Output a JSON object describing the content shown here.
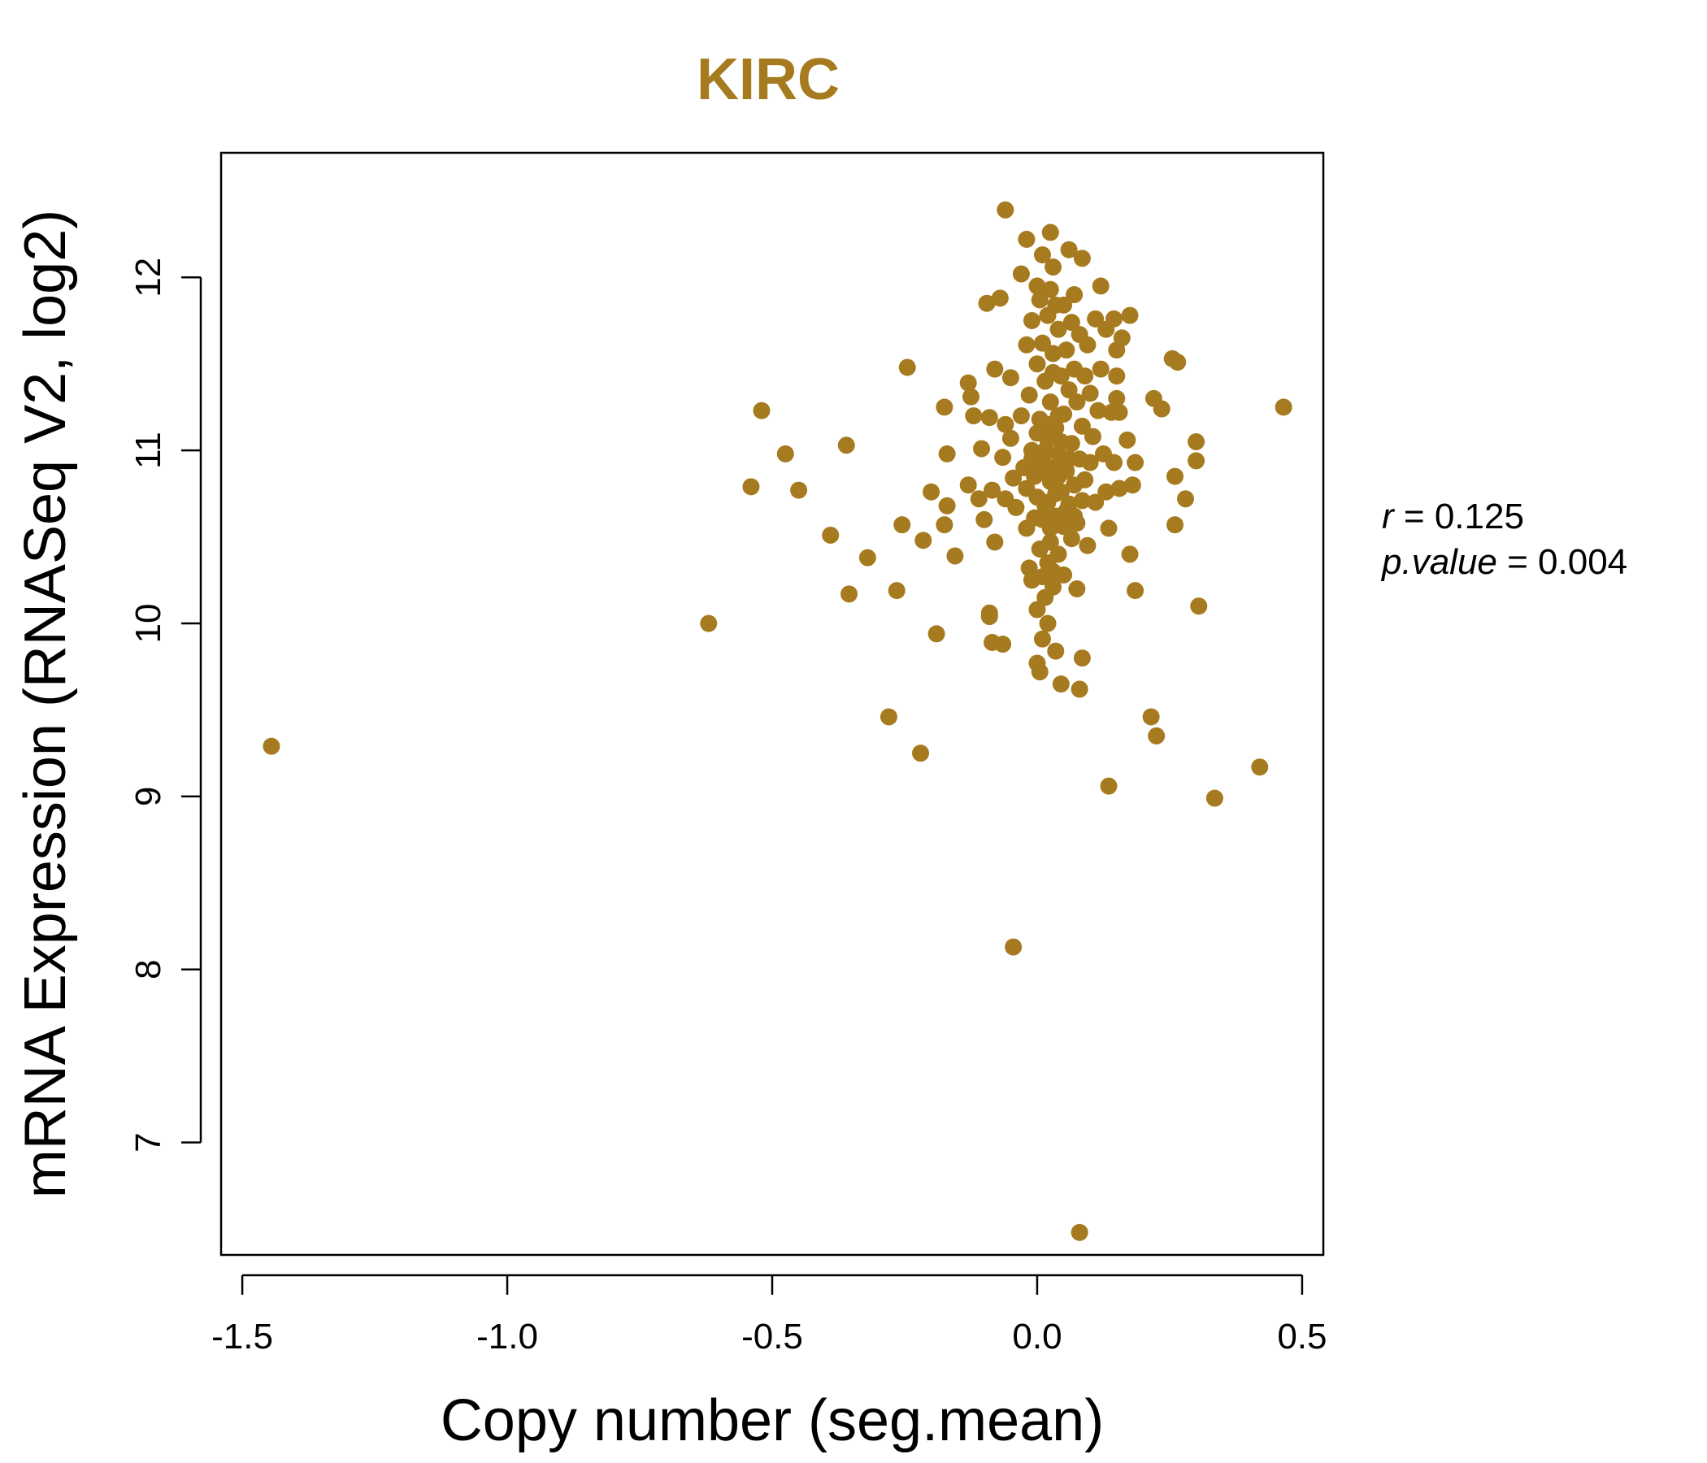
{
  "chart_data": {
    "type": "scatter",
    "title": "KIRC",
    "xlabel": "Copy number (seg.mean)",
    "ylabel": "mRNA Expression (RNASeq V2, log2)",
    "xlim": [
      -1.54,
      0.54
    ],
    "ylim": [
      6.35,
      12.72
    ],
    "x_ticks": [
      -1.5,
      -1.0,
      -0.5,
      0.0,
      0.5
    ],
    "x_tick_labels": [
      "-1.5",
      "-1.0",
      "-0.5",
      "0.0",
      "0.5"
    ],
    "y_ticks": [
      7,
      8,
      9,
      10,
      11,
      12
    ],
    "y_tick_labels": [
      "7",
      "8",
      "9",
      "10",
      "11",
      "12"
    ],
    "grid": false,
    "point_color": "#A67A1E",
    "stats": {
      "r_symbol": "r",
      "r_value": "0.125",
      "p_symbol": "p.value",
      "p_value": "0.004"
    },
    "points": [
      [
        -1.445,
        9.29
      ],
      [
        -0.62,
        10.0
      ],
      [
        -0.52,
        11.23
      ],
      [
        -0.54,
        10.79
      ],
      [
        -0.475,
        10.98
      ],
      [
        -0.45,
        10.77
      ],
      [
        -0.39,
        10.51
      ],
      [
        -0.36,
        11.03
      ],
      [
        -0.355,
        10.17
      ],
      [
        -0.32,
        10.38
      ],
      [
        -0.28,
        9.46
      ],
      [
        -0.265,
        10.19
      ],
      [
        -0.245,
        11.48
      ],
      [
        -0.255,
        10.57
      ],
      [
        -0.22,
        9.25
      ],
      [
        -0.215,
        10.48
      ],
      [
        -0.2,
        10.76
      ],
      [
        -0.19,
        9.94
      ],
      [
        -0.175,
        11.25
      ],
      [
        -0.17,
        10.98
      ],
      [
        -0.175,
        10.57
      ],
      [
        -0.17,
        10.68
      ],
      [
        -0.155,
        10.39
      ],
      [
        -0.13,
        11.39
      ],
      [
        -0.125,
        11.31
      ],
      [
        -0.13,
        10.8
      ],
      [
        -0.12,
        11.2
      ],
      [
        -0.11,
        10.72
      ],
      [
        -0.105,
        11.01
      ],
      [
        -0.1,
        10.6
      ],
      [
        -0.095,
        11.85
      ],
      [
        -0.09,
        11.19
      ],
      [
        -0.085,
        10.77
      ],
      [
        -0.09,
        10.06
      ],
      [
        -0.09,
        10.04
      ],
      [
        -0.085,
        9.89
      ],
      [
        -0.08,
        11.47
      ],
      [
        -0.08,
        10.47
      ],
      [
        -0.07,
        11.88
      ],
      [
        -0.065,
        9.88
      ],
      [
        -0.065,
        10.96
      ],
      [
        -0.06,
        11.15
      ],
      [
        -0.06,
        10.72
      ],
      [
        -0.06,
        12.39
      ],
      [
        -0.05,
        11.42
      ],
      [
        -0.05,
        11.07
      ],
      [
        -0.045,
        10.84
      ],
      [
        -0.045,
        8.13
      ],
      [
        -0.04,
        10.67
      ],
      [
        -0.03,
        12.02
      ],
      [
        -0.03,
        11.2
      ],
      [
        -0.025,
        10.9
      ],
      [
        -0.02,
        12.22
      ],
      [
        -0.02,
        11.61
      ],
      [
        -0.02,
        10.55
      ],
      [
        -0.015,
        11.32
      ],
      [
        -0.015,
        10.32
      ],
      [
        -0.01,
        11.75
      ],
      [
        -0.01,
        11.0
      ],
      [
        -0.01,
        10.25
      ],
      [
        -0.005,
        10.61
      ],
      [
        0.0,
        11.95
      ],
      [
        0.0,
        11.5
      ],
      [
        0.0,
        10.73
      ],
      [
        0.0,
        10.08
      ],
      [
        0.0,
        9.77
      ],
      [
        0.005,
        11.87
      ],
      [
        0.005,
        11.18
      ],
      [
        0.005,
        10.43
      ],
      [
        0.005,
        9.72
      ],
      [
        0.01,
        12.13
      ],
      [
        0.01,
        11.62
      ],
      [
        0.01,
        10.95
      ],
      [
        0.01,
        10.27
      ],
      [
        0.01,
        9.91
      ],
      [
        0.015,
        11.4
      ],
      [
        0.015,
        10.68
      ],
      [
        0.015,
        10.15
      ],
      [
        0.02,
        11.78
      ],
      [
        0.02,
        11.06
      ],
      [
        0.02,
        10.35
      ],
      [
        0.02,
        10.0
      ],
      [
        0.025,
        12.26
      ],
      [
        0.025,
        11.93
      ],
      [
        0.025,
        11.28
      ],
      [
        0.025,
        10.82
      ],
      [
        0.025,
        10.47
      ],
      [
        0.03,
        12.06
      ],
      [
        0.03,
        11.56
      ],
      [
        0.03,
        10.9
      ],
      [
        0.03,
        10.21
      ],
      [
        0.035,
        11.84
      ],
      [
        0.035,
        11.13
      ],
      [
        0.035,
        10.62
      ],
      [
        0.035,
        9.84
      ],
      [
        0.04,
        11.7
      ],
      [
        0.04,
        10.98
      ],
      [
        0.04,
        10.4
      ],
      [
        0.045,
        11.43
      ],
      [
        0.045,
        10.76
      ],
      [
        0.045,
        9.65
      ],
      [
        0.05,
        11.84
      ],
      [
        0.05,
        11.21
      ],
      [
        0.05,
        10.56
      ],
      [
        0.05,
        10.28
      ],
      [
        0.055,
        11.58
      ],
      [
        0.055,
        10.88
      ],
      [
        0.06,
        12.16
      ],
      [
        0.06,
        11.35
      ],
      [
        0.06,
        10.69
      ],
      [
        0.065,
        11.74
      ],
      [
        0.065,
        11.04
      ],
      [
        0.065,
        10.49
      ],
      [
        0.07,
        11.9
      ],
      [
        0.07,
        11.47
      ],
      [
        0.07,
        10.8
      ],
      [
        0.075,
        11.28
      ],
      [
        0.075,
        10.58
      ],
      [
        0.075,
        10.2
      ],
      [
        0.08,
        11.67
      ],
      [
        0.08,
        10.95
      ],
      [
        0.08,
        9.62
      ],
      [
        0.08,
        6.48
      ],
      [
        0.085,
        12.11
      ],
      [
        0.085,
        11.14
      ],
      [
        0.085,
        10.71
      ],
      [
        0.085,
        9.8
      ],
      [
        0.09,
        11.43
      ],
      [
        0.09,
        10.83
      ],
      [
        0.095,
        11.61
      ],
      [
        0.095,
        10.45
      ],
      [
        0.1,
        11.33
      ],
      [
        0.1,
        10.93
      ],
      [
        0.105,
        11.08
      ],
      [
        0.11,
        11.76
      ],
      [
        0.11,
        10.7
      ],
      [
        0.115,
        11.23
      ],
      [
        0.12,
        11.95
      ],
      [
        0.12,
        11.47
      ],
      [
        0.125,
        10.98
      ],
      [
        0.13,
        11.7
      ],
      [
        0.13,
        10.76
      ],
      [
        0.135,
        10.55
      ],
      [
        0.135,
        9.06
      ],
      [
        0.14,
        11.22
      ],
      [
        0.145,
        11.76
      ],
      [
        0.145,
        10.93
      ],
      [
        0.15,
        11.58
      ],
      [
        0.15,
        11.43
      ],
      [
        0.15,
        11.3
      ],
      [
        0.155,
        11.22
      ],
      [
        0.155,
        10.78
      ],
      [
        0.16,
        11.65
      ],
      [
        0.17,
        11.06
      ],
      [
        0.175,
        11.78
      ],
      [
        0.175,
        10.4
      ],
      [
        0.18,
        10.8
      ],
      [
        0.185,
        10.93
      ],
      [
        0.185,
        10.19
      ],
      [
        0.215,
        9.46
      ],
      [
        0.22,
        11.3
      ],
      [
        0.225,
        9.35
      ],
      [
        0.235,
        11.24
      ],
      [
        0.255,
        11.53
      ],
      [
        0.26,
        10.85
      ],
      [
        0.26,
        10.57
      ],
      [
        0.265,
        11.51
      ],
      [
        0.28,
        10.72
      ],
      [
        0.3,
        11.05
      ],
      [
        0.3,
        10.94
      ],
      [
        0.305,
        10.1
      ],
      [
        0.335,
        8.99
      ],
      [
        0.42,
        9.17
      ],
      [
        0.465,
        11.25
      ],
      [
        -0.005,
        10.85
      ],
      [
        0.0,
        11.1
      ],
      [
        0.01,
        10.6
      ],
      [
        0.02,
        10.7
      ],
      [
        0.03,
        10.3
      ],
      [
        0.04,
        11.2
      ],
      [
        0.05,
        10.9
      ],
      [
        -0.01,
        10.95
      ],
      [
        0.015,
        11.0
      ],
      [
        0.025,
        10.55
      ],
      [
        0.035,
        10.75
      ],
      [
        0.045,
        11.05
      ],
      [
        0.055,
        10.65
      ],
      [
        -0.02,
        10.78
      ],
      [
        0.005,
        10.88
      ],
      [
        0.06,
        10.95
      ],
      [
        0.07,
        10.62
      ],
      [
        0.03,
        11.45
      ],
      [
        0.02,
        11.15
      ],
      [
        0.04,
        10.85
      ]
    ]
  }
}
